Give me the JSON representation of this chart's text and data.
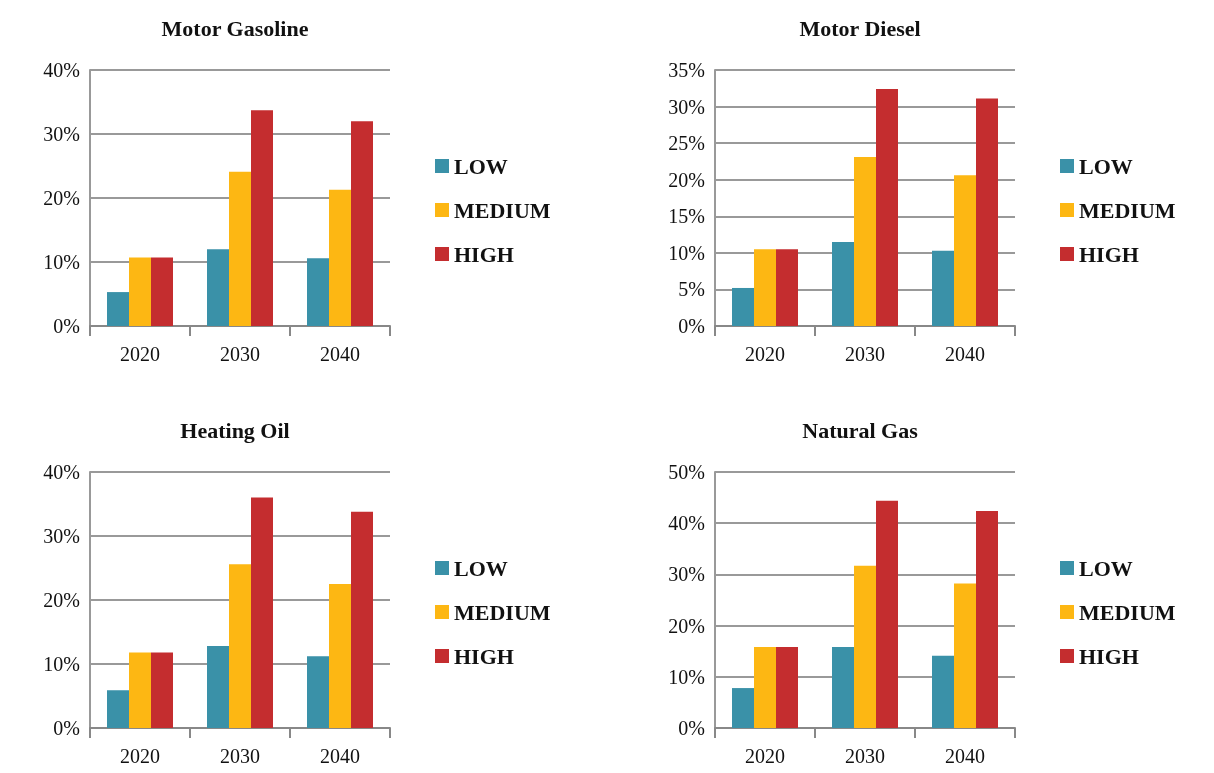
{
  "chart_data": [
    {
      "type": "bar",
      "title": "Motor Gasoline",
      "categories": [
        "2020",
        "2030",
        "2040"
      ],
      "series": [
        {
          "name": "LOW",
          "color": "#3a91a8",
          "values": [
            5.3,
            12.0,
            10.6
          ]
        },
        {
          "name": "MEDIUM",
          "color": "#fdb713",
          "values": [
            10.7,
            24.1,
            21.3
          ]
        },
        {
          "name": "HIGH",
          "color": "#c42d2f",
          "values": [
            10.7,
            33.7,
            32.0
          ]
        }
      ],
      "ylim": [
        0,
        40
      ],
      "yticks": [
        {
          "value": 0,
          "label": "0%"
        },
        {
          "value": 10,
          "label": "10%"
        },
        {
          "value": 20,
          "label": "20%"
        },
        {
          "value": 30,
          "label": "30%"
        },
        {
          "value": 40,
          "label": "40%"
        }
      ],
      "grid": "y",
      "legend": "right"
    },
    {
      "type": "bar",
      "title": "Motor Diesel",
      "categories": [
        "2020",
        "2030",
        "2040"
      ],
      "series": [
        {
          "name": "LOW",
          "color": "#3a91a8",
          "values": [
            5.2,
            11.5,
            10.3
          ]
        },
        {
          "name": "MEDIUM",
          "color": "#fdb713",
          "values": [
            10.5,
            23.1,
            20.6
          ]
        },
        {
          "name": "HIGH",
          "color": "#c42d2f",
          "values": [
            10.5,
            32.4,
            31.1
          ]
        }
      ],
      "ylim": [
        0,
        35
      ],
      "yticks": [
        {
          "value": 0,
          "label": "0%"
        },
        {
          "value": 5,
          "label": "5%"
        },
        {
          "value": 10,
          "label": "10%"
        },
        {
          "value": 15,
          "label": "15%"
        },
        {
          "value": 20,
          "label": "20%"
        },
        {
          "value": 25,
          "label": "25%"
        },
        {
          "value": 30,
          "label": "30%"
        },
        {
          "value": 35,
          "label": "35%"
        }
      ],
      "grid": "y",
      "legend": "right"
    },
    {
      "type": "bar",
      "title": "Heating Oil",
      "categories": [
        "2020",
        "2030",
        "2040"
      ],
      "series": [
        {
          "name": "LOW",
          "color": "#3a91a8",
          "values": [
            5.9,
            12.8,
            11.2
          ]
        },
        {
          "name": "MEDIUM",
          "color": "#fdb713",
          "values": [
            11.8,
            25.6,
            22.5
          ]
        },
        {
          "name": "HIGH",
          "color": "#c42d2f",
          "values": [
            11.8,
            36.0,
            33.8
          ]
        }
      ],
      "ylim": [
        0,
        40
      ],
      "yticks": [
        {
          "value": 0,
          "label": "0%"
        },
        {
          "value": 10,
          "label": "10%"
        },
        {
          "value": 20,
          "label": "20%"
        },
        {
          "value": 30,
          "label": "30%"
        },
        {
          "value": 40,
          "label": "40%"
        }
      ],
      "grid": "y",
      "legend": "right"
    },
    {
      "type": "bar",
      "title": "Natural Gas",
      "categories": [
        "2020",
        "2030",
        "2040"
      ],
      "series": [
        {
          "name": "LOW",
          "color": "#3a91a8",
          "values": [
            7.8,
            15.8,
            14.1
          ]
        },
        {
          "name": "MEDIUM",
          "color": "#fdb713",
          "values": [
            15.8,
            31.7,
            28.2
          ]
        },
        {
          "name": "HIGH",
          "color": "#c42d2f",
          "values": [
            15.8,
            44.4,
            42.4
          ]
        }
      ],
      "ylim": [
        0,
        50
      ],
      "yticks": [
        {
          "value": 0,
          "label": "0%"
        },
        {
          "value": 10,
          "label": "10%"
        },
        {
          "value": 20,
          "label": "20%"
        },
        {
          "value": 30,
          "label": "30%"
        },
        {
          "value": 40,
          "label": "40%"
        },
        {
          "value": 50,
          "label": "50%"
        }
      ],
      "grid": "y",
      "legend": "right"
    }
  ]
}
